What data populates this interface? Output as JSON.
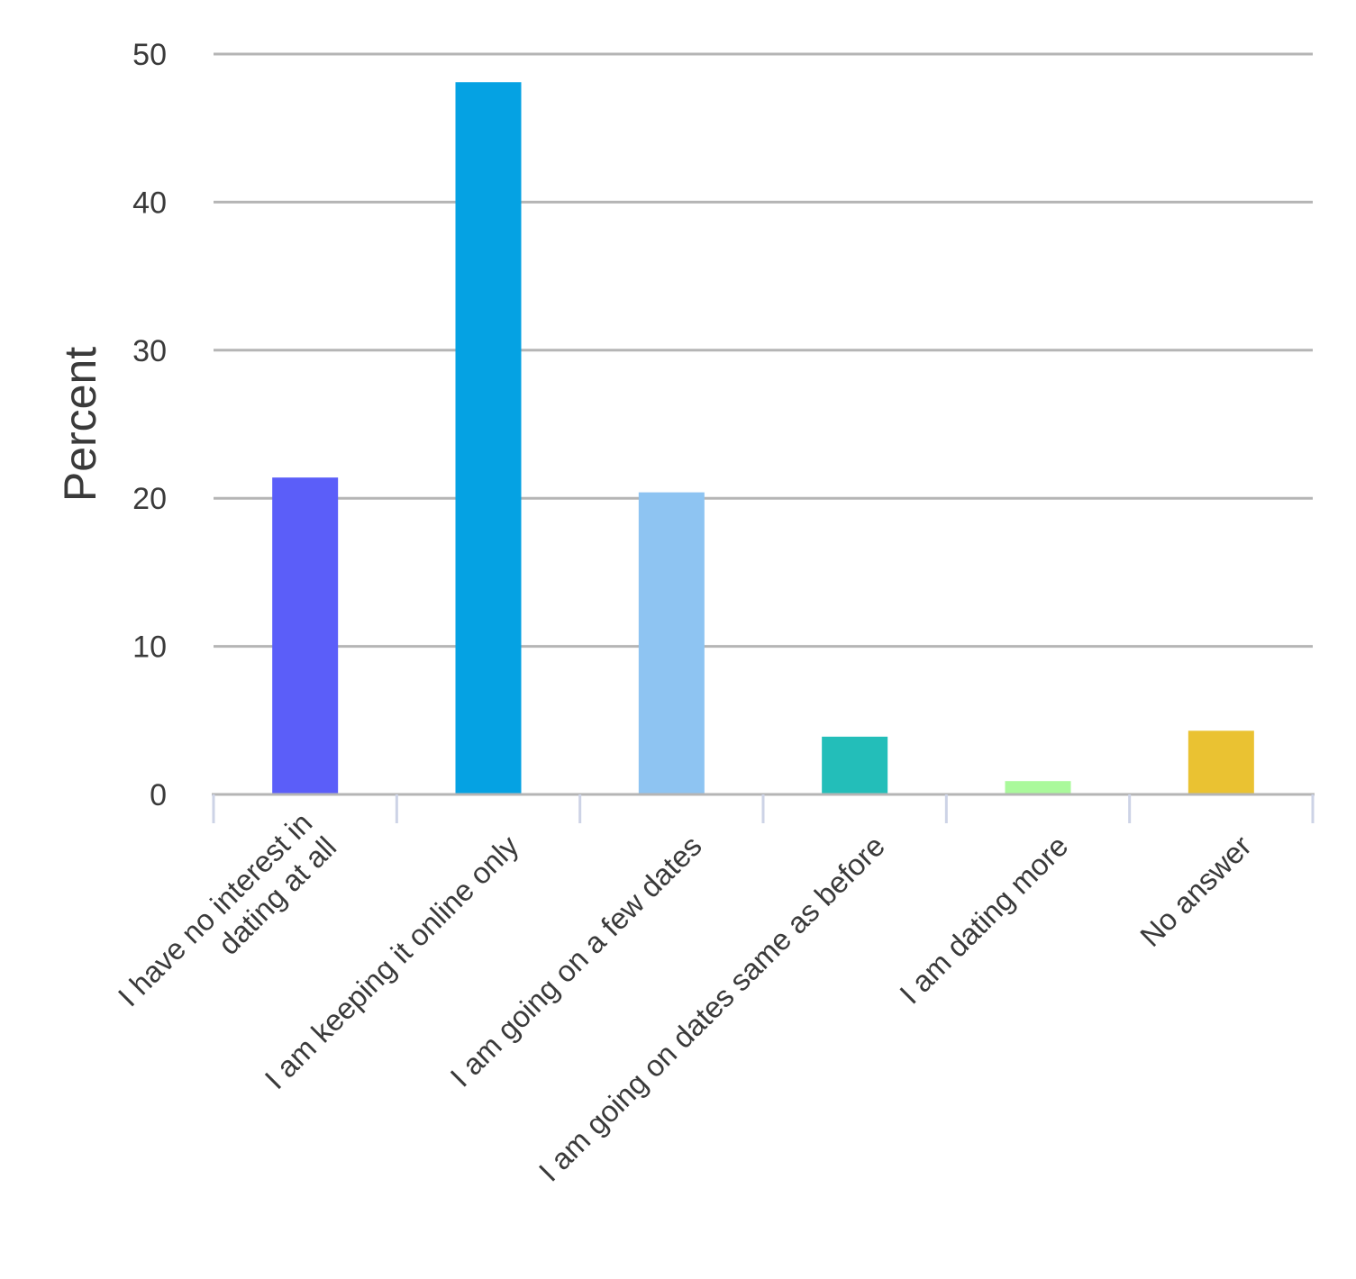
{
  "chart_data": {
    "type": "bar",
    "title": "",
    "xlabel": "",
    "ylabel": "Percent",
    "ylim": [
      0,
      50
    ],
    "yticks": [
      0,
      10,
      20,
      30,
      40,
      50
    ],
    "grid": true,
    "legend": "none",
    "categories": [
      [
        "I have no interest in",
        "dating at all"
      ],
      [
        "I am keeping it online only"
      ],
      [
        "I am going on a few dates"
      ],
      [
        "I am going on dates same as before"
      ],
      [
        "I am dating more"
      ],
      [
        "No answer"
      ]
    ],
    "values": [
      21.4,
      48.1,
      20.4,
      3.9,
      0.9,
      4.3
    ],
    "colors": [
      "#5b5ef9",
      "#05a2e3",
      "#8ec4f2",
      "#23beb9",
      "#aaf99b",
      "#eac232"
    ]
  }
}
